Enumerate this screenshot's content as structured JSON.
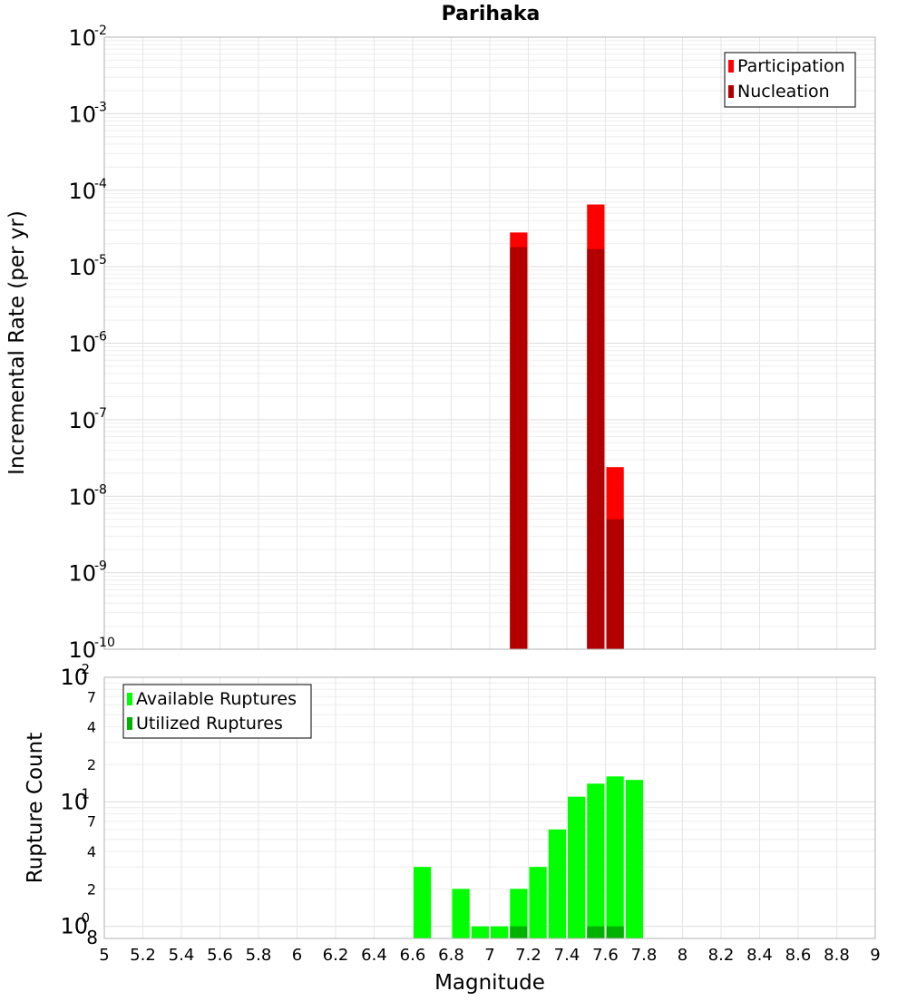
{
  "chart_data": [
    {
      "type": "bar",
      "title": "Parihaka",
      "xlabel": "",
      "ylabel": "Incremental Rate (per yr)",
      "yscale": "log",
      "ylim": [
        1e-10,
        0.01
      ],
      "xlim": [
        5,
        9
      ],
      "y_ticks": [
        {
          "base": "10",
          "exp": "-10"
        },
        {
          "base": "10",
          "exp": "-9"
        },
        {
          "base": "10",
          "exp": "-8"
        },
        {
          "base": "10",
          "exp": "-7"
        },
        {
          "base": "10",
          "exp": "-6"
        },
        {
          "base": "10",
          "exp": "-5"
        },
        {
          "base": "10",
          "exp": "-4"
        },
        {
          "base": "10",
          "exp": "-3"
        },
        {
          "base": "10",
          "exp": "-2"
        }
      ],
      "grid": true,
      "legend_position": "top-right",
      "series": [
        {
          "name": "Participation",
          "color": "#ff0000",
          "points": [
            {
              "x": 7.15,
              "y": 2.8e-05
            },
            {
              "x": 7.55,
              "y": 6.5e-05
            },
            {
              "x": 7.65,
              "y": 2.4e-08
            }
          ]
        },
        {
          "name": "Nucleation",
          "color": "#b20000",
          "points": [
            {
              "x": 7.15,
              "y": 1.8e-05
            },
            {
              "x": 7.55,
              "y": 1.7e-05
            },
            {
              "x": 7.65,
              "y": 5e-09
            }
          ]
        }
      ]
    },
    {
      "type": "bar",
      "title": "",
      "xlabel": "Magnitude",
      "ylabel": "Rupture Count",
      "yscale": "log",
      "ylim": [
        0.8,
        100
      ],
      "xlim": [
        5,
        9
      ],
      "x_ticks": [
        "5",
        "5.2",
        "5.4",
        "5.6",
        "5.8",
        "6",
        "6.2",
        "6.4",
        "6.6",
        "6.8",
        "7",
        "7.2",
        "7.4",
        "7.6",
        "7.8",
        "8",
        "8.2",
        "8.4",
        "8.6",
        "8.8",
        "9"
      ],
      "y_major_ticks": [
        {
          "base": "10",
          "exp": "0"
        },
        {
          "base": "10",
          "exp": "1"
        },
        {
          "base": "10",
          "exp": "2"
        }
      ],
      "y_minor_labels": [
        "8",
        "2",
        "4",
        "7",
        "2",
        "4",
        "7"
      ],
      "grid": true,
      "legend_position": "top-left",
      "series": [
        {
          "name": "Available Ruptures",
          "color": "#00ff00",
          "points": [
            {
              "x": 6.65,
              "y": 3
            },
            {
              "x": 6.85,
              "y": 2
            },
            {
              "x": 6.95,
              "y": 1
            },
            {
              "x": 7.05,
              "y": 1
            },
            {
              "x": 7.15,
              "y": 2
            },
            {
              "x": 7.25,
              "y": 3
            },
            {
              "x": 7.35,
              "y": 6
            },
            {
              "x": 7.45,
              "y": 11
            },
            {
              "x": 7.55,
              "y": 14
            },
            {
              "x": 7.65,
              "y": 16
            },
            {
              "x": 7.75,
              "y": 15
            }
          ]
        },
        {
          "name": "Utilized Ruptures",
          "color": "#00b200",
          "points": [
            {
              "x": 7.15,
              "y": 1
            },
            {
              "x": 7.55,
              "y": 1
            },
            {
              "x": 7.65,
              "y": 1
            }
          ]
        }
      ]
    }
  ]
}
